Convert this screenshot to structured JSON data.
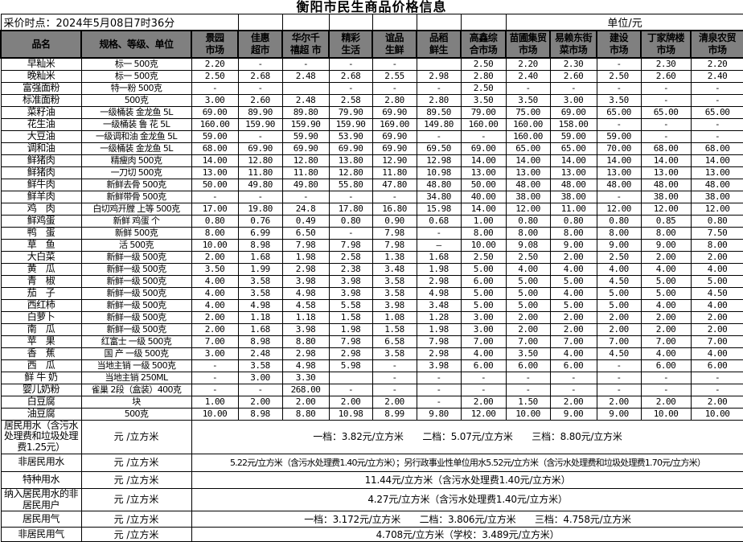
{
  "title": "衡阳市民生商品价格信息",
  "meta": {
    "price_time": "采价时点：2024年5月08日7时36分",
    "unit": "单位/元"
  },
  "colors": {
    "header_bg": "#808080",
    "border": "#000000",
    "page_bg": "#ffffff"
  },
  "columns": [
    "品名",
    "规格、等级、单位",
    "景园\n市场",
    "佳惠\n超市",
    "华尔千\n禧超 市",
    "精彩\n生活",
    "谊品\n生鲜",
    "品稻\n鲜生",
    "高鑫综\n合市场",
    "苗圃集贸\n市场",
    "易赖东街\n菜市场",
    "建设\n市场",
    "丁家牌楼\n市场",
    "清泉农贸\n市场"
  ],
  "products": [
    {
      "name": "早籼米",
      "spec": "标一 500克",
      "prices": [
        "2.20",
        "-",
        "-",
        "-",
        "-",
        "",
        "2.50",
        "2.20",
        "2.30",
        "-",
        "2.30",
        "2.20"
      ]
    },
    {
      "name": "晚籼米",
      "spec": "标一 500克",
      "prices": [
        "2.50",
        "2.68",
        "2.48",
        "2.68",
        "2.55",
        "2.98",
        "2.80",
        "2.40",
        "2.60",
        "2.50",
        "2.60",
        "2.40"
      ]
    },
    {
      "name": "富强面粉",
      "spec": "特一粉  500克",
      "prices": [
        "-",
        "-",
        "",
        "-",
        "-",
        "-",
        "2.50",
        "-",
        "-",
        "-",
        "-",
        "-"
      ]
    },
    {
      "name": "标准面粉",
      "spec": "500克",
      "prices": [
        "3.00",
        "2.60",
        "2.48",
        "2.58",
        "2.80",
        "2.80",
        "3.50",
        "3.50",
        "3.00",
        "3.50",
        "-",
        "-"
      ]
    },
    {
      "name": "菜籽油",
      "spec": "一级桶装  金龙鱼  5L",
      "prices": [
        "69.00",
        "89.90",
        "89.80",
        "79.90",
        "69.90",
        "89.50",
        "79.00",
        "75.00",
        "69.00",
        "65.00",
        "65.00",
        "65.00"
      ]
    },
    {
      "name": "花生油",
      "spec": "一级桶装  鲁  花  5L",
      "prices": [
        "160.00",
        "159.90",
        "159.90",
        "159.90",
        "169.00",
        "149.80",
        "160.00",
        "160.00",
        "158.00",
        "-",
        "-",
        "-"
      ]
    },
    {
      "name": "大豆油",
      "spec": "一级调和油 金龙鱼 5L",
      "prices": [
        "59.00",
        "-",
        "59.90",
        "53.90",
        "69.90",
        "-",
        "-",
        "160.00",
        "59.00",
        "59.00",
        "-",
        "-"
      ]
    },
    {
      "name": "调和油",
      "spec": "一级桶装  金龙鱼  5L",
      "prices": [
        "68.00",
        "69.90",
        "69.90",
        "69.90",
        "69.90",
        "69.50",
        "69.00",
        "65.00",
        "65.00",
        "70.00",
        "68.00",
        "68.00"
      ]
    },
    {
      "name": "鲜猪肉",
      "spec": "精瘦肉  500克",
      "prices": [
        "14.00",
        "12.80",
        "12.80",
        "13.80",
        "12.90",
        "12.98",
        "14.00",
        "14.00",
        "14.00",
        "14.00",
        "14.00",
        "14.00"
      ]
    },
    {
      "name": "鲜猪肉",
      "spec": "一刀切  500克",
      "prices": [
        "13.00",
        "11.80",
        "11.80",
        "12.80",
        "11.80",
        "10.98",
        "13.00",
        "13.00",
        "13.00",
        "13.00",
        "13.00",
        "13.00"
      ]
    },
    {
      "name": "鲜牛肉",
      "spec": "新鲜去骨 500克",
      "prices": [
        "50.00",
        "49.80",
        "49.80",
        "55.80",
        "47.80",
        "48.80",
        "50.00",
        "48.00",
        "48.00",
        "48.00",
        "48.00",
        "48.00"
      ]
    },
    {
      "name": "鲜羊肉",
      "spec": "新鲜带骨 500克",
      "prices": [
        "-",
        "-",
        "-",
        "-",
        "-",
        "34.80",
        "40.00",
        "38.00",
        "38.00",
        "-",
        "38.00",
        "38.00"
      ]
    },
    {
      "name": "鸡　肉",
      "spec": "白切鸡开膛 上等 500克",
      "prices": [
        "17.00",
        "19.80",
        "24.8",
        "17.80",
        "16.80",
        "15.98",
        "14.00",
        "12.00",
        "11.00",
        "12.00",
        "12.00",
        "12.00"
      ]
    },
    {
      "name": "鲜鸡蛋",
      "spec": "新鲜 鸡蛋  个",
      "prices": [
        "0.80",
        "0.76",
        "0.49",
        "0.80",
        "0.90",
        "0.68",
        "1.00",
        "0.80",
        "0.80",
        "0.80",
        "0.85",
        "0.80"
      ]
    },
    {
      "name": "鸭　蛋",
      "spec": "新鲜  500克",
      "prices": [
        "8.00",
        "6.99",
        "6.50",
        "-",
        "7.98",
        "-",
        "8.00",
        "8.00",
        "8.00",
        "8.00",
        "8.00",
        "7.50"
      ]
    },
    {
      "name": "草　鱼",
      "spec": "活  500克",
      "prices": [
        "10.00",
        "8.98",
        "7.98",
        "7.98",
        "7.98",
        "—",
        "10.00",
        "9.08",
        "9.00",
        "9.00",
        "9.00",
        "8.00"
      ]
    },
    {
      "name": "大白菜",
      "spec": "新鲜一级 500克",
      "prices": [
        "2.00",
        "1.68",
        "1.98",
        "2.58",
        "1.38",
        "1.68",
        "2.50",
        "2.50",
        "2.00",
        "2.50",
        "2.00",
        "2.00"
      ]
    },
    {
      "name": "黄　瓜",
      "spec": "新鲜一级 500克",
      "prices": [
        "3.50",
        "1.99",
        "2.98",
        "2.38",
        "3.48",
        "1.98",
        "5.00",
        "4.00",
        "4.00",
        "4.00",
        "4.00",
        "4.00"
      ]
    },
    {
      "name": "青　椒",
      "spec": "新鲜一级 500克",
      "prices": [
        "4.00",
        "3.58",
        "3.98",
        "3.98",
        "3.58",
        "2.98",
        "6.00",
        "5.00",
        "5.00",
        "4.50",
        "5.00",
        "5.00"
      ]
    },
    {
      "name": "茄　子",
      "spec": "新鲜一级 500克",
      "prices": [
        "4.00",
        "3.58",
        "4.98",
        "3.98",
        "3.58",
        "4.98",
        "5.00",
        "5.00",
        "4.00",
        "5.00",
        "5.00",
        "4.50"
      ]
    },
    {
      "name": "西红柿",
      "spec": "新鲜一级 500克",
      "prices": [
        "4.00",
        "4.98",
        "4.58",
        "5.58",
        "3.98",
        "3.48",
        "5.00",
        "5.00",
        "5.00",
        "5.00",
        "4.00",
        "4.00"
      ]
    },
    {
      "name": "白萝卜",
      "spec": "新鲜一级 500克",
      "prices": [
        "2.00",
        "1.18",
        "1.18",
        "1.58",
        "1.08",
        "1.28",
        "3.00",
        "2.00",
        "2.00",
        "2.00",
        "2.00",
        "2.00"
      ]
    },
    {
      "name": "南　瓜",
      "spec": "新鲜一级 500克",
      "prices": [
        "2.00",
        "1.68",
        "3.98",
        "1.98",
        "1.58",
        "1.98",
        "3.00",
        "2.00",
        "2.00",
        "2.00",
        "2.00",
        "2.00"
      ]
    },
    {
      "name": "苹　果",
      "spec": "红富士  一级  500克",
      "prices": [
        "7.00",
        "8.98",
        "8.80",
        "7.98",
        "6.58",
        "7.98",
        "7.00",
        "7.00",
        "7.00",
        "7.00",
        "7.00",
        "7.00"
      ]
    },
    {
      "name": "香　蕉",
      "spec": "国 产  一级  500克",
      "prices": [
        "3.00",
        "2.48",
        "2.98",
        "2.98",
        "3.58",
        "2.98",
        "4.00",
        "3.50",
        "4.00",
        "4.50",
        "4.00",
        "4.00"
      ]
    },
    {
      "name": "西　瓜",
      "spec": "当地主销 一级  500克",
      "prices": [
        "-",
        "3.58",
        "4.98",
        "5.98",
        "-",
        "3.98",
        "6.00",
        "6.00",
        "6.00",
        "-",
        "6.00",
        "6.00"
      ]
    },
    {
      "name": "鲜 牛 奶",
      "spec": "当地主销  250ML",
      "prices": [
        "-",
        "3.00",
        "3.30",
        "",
        "-",
        "-",
        "-",
        "-",
        "-",
        "-",
        "-",
        "-"
      ]
    },
    {
      "name": "婴儿奶粉",
      "spec": "雀巢 2段（盒装）400克",
      "prices": [
        "-",
        "-",
        "268.00",
        "-",
        "-",
        "-",
        "-",
        "-",
        "-",
        "-",
        "-",
        "-"
      ]
    },
    {
      "name": "白豆腐",
      "spec": "块",
      "prices": [
        "1.00",
        "2.00",
        "2.00",
        "2.00",
        "2.00",
        "-",
        "2.00",
        "1.50",
        "2.00",
        "2.00",
        "2.00",
        "2.00"
      ]
    },
    {
      "name": "油豆腐",
      "spec": "500克",
      "prices": [
        "10.00",
        "8.98",
        "8.80",
        "10.98",
        "8.99",
        "9.80",
        "12.00",
        "10.00",
        "9.00",
        "9.00",
        "10.00",
        "10.00"
      ]
    }
  ],
  "utilities": [
    {
      "name": "居民用水（含污水处理费和垃圾处理费1.25元）",
      "unit": "元 /立方米",
      "value": "一档：3.82元/立方米　　二档：5.07元/立方米　　三档：8.80元/立方米",
      "small": true,
      "fit": false
    },
    {
      "name": "非居民用水",
      "unit": "元 /立方米",
      "value": "5.22元/立方米（含污水处理费1.40元/立方米）；另行政事业性单位用水5.52元/立方米（含污水处理费和垃圾处理费1.70元/立方米）",
      "small": false,
      "fit": true
    },
    {
      "name": "特种用水",
      "unit": "元 /立方米",
      "value": "11.44元/立方米（含污水处理费1.40元/立方米）",
      "small": false,
      "fit": false
    },
    {
      "name": "纳入居民用水的非居民用户",
      "unit": "元 /立方米",
      "value": "4.27元/立方米（含污水处理费1.40元/立方米）",
      "small": false,
      "fit": false
    },
    {
      "name": "居民用气",
      "unit": "元 /立方米",
      "value": "一档：3.172元/立方米　　二档：3.806元/立方米　　三档：4.758元/立方米",
      "small": false,
      "fit": false
    },
    {
      "name": "非居民用气",
      "unit": "元 /立方米",
      "value": "4.708元/立方米（学校：3.489元/立方米）",
      "small": false,
      "fit": false
    }
  ]
}
